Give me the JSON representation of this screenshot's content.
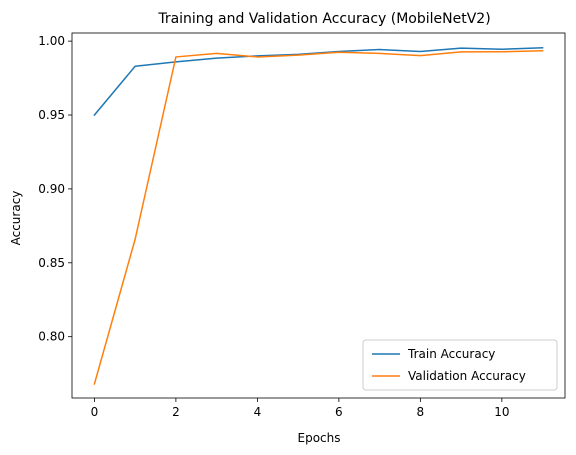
{
  "chart_data": {
    "type": "line",
    "title": "Training and Validation Accuracy (MobileNetV2)",
    "xlabel": "Epochs",
    "ylabel": "Accuracy",
    "x": [
      0,
      1,
      2,
      3,
      4,
      5,
      6,
      7,
      8,
      9,
      10,
      11
    ],
    "xlim": [
      -0.55,
      11.55
    ],
    "ylim": [
      0.7585,
      1.0055
    ],
    "xticks": [
      0,
      2,
      4,
      6,
      8,
      10
    ],
    "yticks": [
      0.8,
      0.85,
      0.9,
      0.95,
      1.0
    ],
    "ytick_labels": [
      "0.80",
      "0.85",
      "0.90",
      "0.95",
      "1.00"
    ],
    "grid": false,
    "legend_position": "lower-right",
    "series": [
      {
        "name": "Train Accuracy",
        "color": "#1f77b4",
        "values": [
          0.95,
          0.983,
          0.986,
          0.9885,
          0.99,
          0.991,
          0.993,
          0.9943,
          0.993,
          0.9953,
          0.9945,
          0.9955
        ]
      },
      {
        "name": "Validation Accuracy",
        "color": "#ff7f0e",
        "values": [
          0.768,
          0.866,
          0.9893,
          0.9917,
          0.9893,
          0.9905,
          0.9925,
          0.9917,
          0.9902,
          0.9927,
          0.9928,
          0.9935
        ]
      }
    ]
  }
}
